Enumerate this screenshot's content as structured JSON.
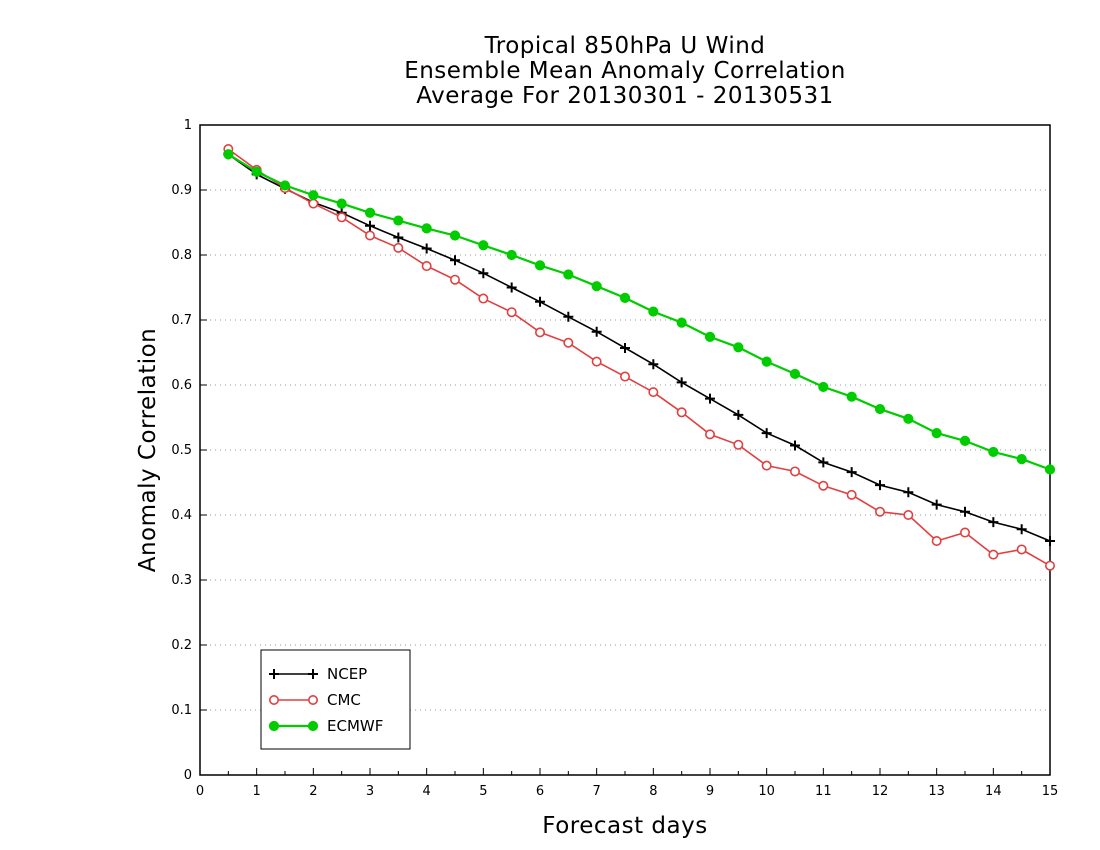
{
  "chart_data": {
    "type": "line",
    "title": [
      "Tropical 850hPa U Wind",
      "Ensemble Mean Anomaly Correlation",
      "Average For 20130301 - 20130531"
    ],
    "xlabel": "Forecast days",
    "ylabel": "Anomaly Correlation",
    "xlim": [
      0,
      15
    ],
    "ylim": [
      0,
      1
    ],
    "x_ticks": [
      "0",
      "1",
      "2",
      "3",
      "4",
      "5",
      "6",
      "7",
      "8",
      "9",
      "10",
      "11",
      "12",
      "13",
      "14",
      "15"
    ],
    "y_ticks": [
      "0",
      "0.1",
      "0.2",
      "0.3",
      "0.4",
      "0.5",
      "0.6",
      "0.7",
      "0.8",
      "0.9",
      "1"
    ],
    "grid": true,
    "legend_position": "bottom-left",
    "x": [
      0.5,
      1,
      1.5,
      2,
      2.5,
      3,
      3.5,
      4,
      4.5,
      5,
      5.5,
      6,
      6.5,
      7,
      7.5,
      8,
      8.5,
      9,
      9.5,
      10,
      10.5,
      11,
      11.5,
      12,
      12.5,
      13,
      13.5,
      14,
      14.5,
      15
    ],
    "series": [
      {
        "name": "NCEP",
        "color": "#000000",
        "marker": "plus",
        "values": [
          0.955,
          0.924,
          0.902,
          0.881,
          0.865,
          0.845,
          0.827,
          0.81,
          0.792,
          0.772,
          0.75,
          0.728,
          0.705,
          0.682,
          0.657,
          0.632,
          0.604,
          0.579,
          0.554,
          0.526,
          0.507,
          0.481,
          0.466,
          0.446,
          0.435,
          0.416,
          0.405,
          0.389,
          0.378,
          0.36
        ]
      },
      {
        "name": "CMC",
        "color": "#e04040",
        "marker": "open-circle",
        "values": [
          0.963,
          0.931,
          0.903,
          0.879,
          0.858,
          0.83,
          0.811,
          0.783,
          0.762,
          0.733,
          0.712,
          0.681,
          0.665,
          0.636,
          0.613,
          0.589,
          0.558,
          0.524,
          0.508,
          0.476,
          0.467,
          0.445,
          0.431,
          0.405,
          0.4,
          0.36,
          0.373,
          0.339,
          0.347,
          0.322
        ]
      },
      {
        "name": "ECMWF",
        "color": "#00cc00",
        "marker": "filled-circle",
        "values": [
          0.955,
          0.928,
          0.907,
          0.892,
          0.879,
          0.865,
          0.853,
          0.841,
          0.83,
          0.815,
          0.8,
          0.784,
          0.77,
          0.752,
          0.734,
          0.713,
          0.696,
          0.674,
          0.658,
          0.636,
          0.617,
          0.597,
          0.582,
          0.563,
          0.548,
          0.526,
          0.514,
          0.497,
          0.486,
          0.47
        ]
      }
    ]
  }
}
